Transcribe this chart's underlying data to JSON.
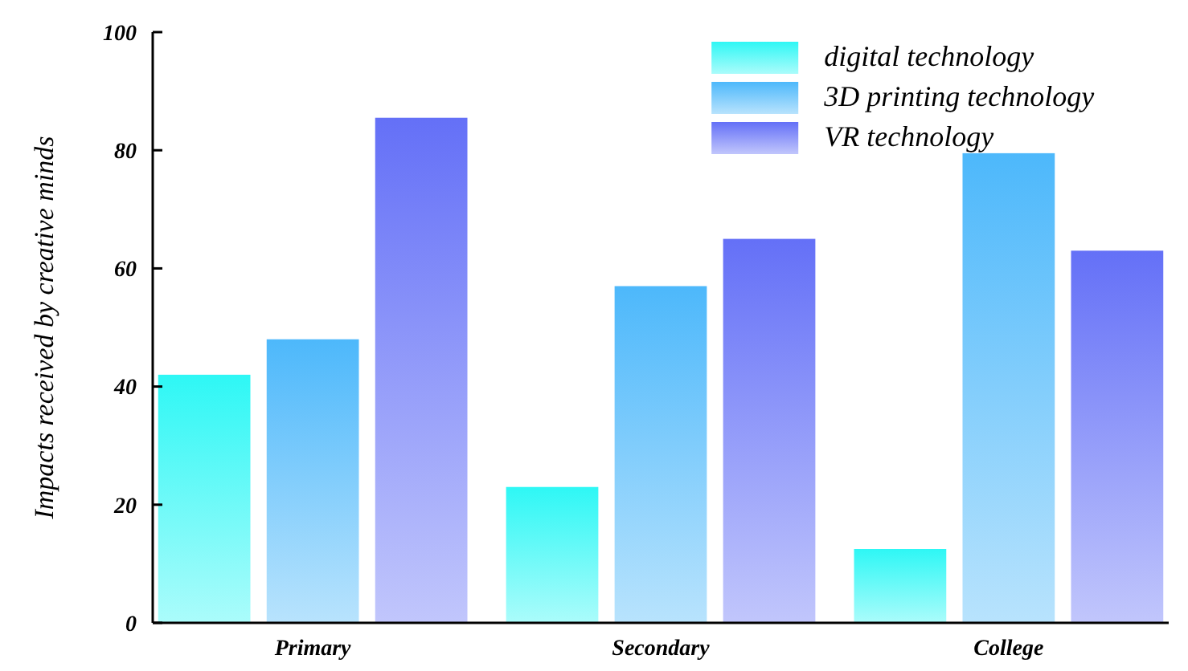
{
  "chart_data": {
    "type": "bar",
    "ylabel": "Impacts received by creative minds",
    "categories": [
      "Primary",
      "Secondary",
      "College"
    ],
    "series": [
      {
        "name": "digital technology",
        "color": "#2ef7f5",
        "values": [
          42,
          23,
          12.5
        ]
      },
      {
        "name": "3D printing technology",
        "color": "#4db8fb",
        "values": [
          48,
          57,
          79.5
        ]
      },
      {
        "name": "VR technology",
        "color": "#6470f7",
        "values": [
          85.5,
          65,
          63
        ]
      }
    ],
    "ylim": [
      0,
      100
    ],
    "yticks": [
      0,
      20,
      40,
      60,
      80,
      100
    ],
    "grid": false,
    "legend": "top right"
  }
}
